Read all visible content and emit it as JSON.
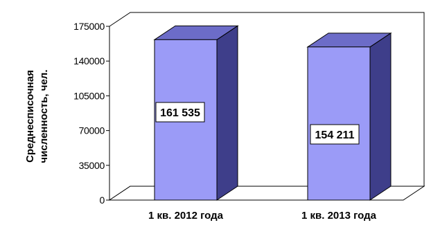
{
  "chart_data": {
    "type": "bar",
    "categories": [
      "1 кв. 2012 года",
      "1 кв. 2013 года"
    ],
    "values": [
      161535,
      154211
    ],
    "data_labels": [
      "161 535",
      "154 211"
    ],
    "ylabel_lines": [
      "Среднесписочная",
      "численность, чел."
    ],
    "yticks": [
      "0",
      "35000",
      "70000",
      "105000",
      "140000",
      "175000"
    ],
    "ylim": [
      0,
      175000
    ],
    "grid": false,
    "style": "3d-column",
    "colors": {
      "bar_front": "#9b9bf7",
      "bar_side": "#3e3e8a",
      "bar_top": "#6c6cc8",
      "axis": "#000000",
      "label_box": "#ffffff"
    }
  }
}
